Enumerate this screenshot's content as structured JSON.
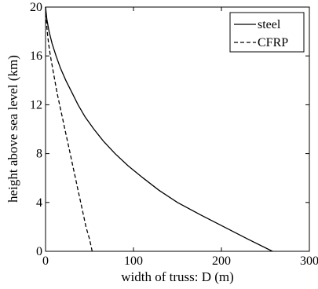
{
  "chart_data": {
    "type": "line",
    "title": "",
    "xlabel": "width of truss: D (m)",
    "ylabel": "height above sea level (km)",
    "xlim": [
      0,
      300
    ],
    "ylim": [
      0,
      20
    ],
    "xticks": [
      0,
      100,
      200,
      300
    ],
    "yticks": [
      0,
      4,
      8,
      12,
      16,
      20
    ],
    "grid": false,
    "legend": {
      "location": "top-right"
    },
    "series": [
      {
        "name": "steel",
        "style": "solid",
        "color": "#000000",
        "points": [
          [
            258,
            0
          ],
          [
            230,
            1
          ],
          [
            203,
            2
          ],
          [
            176,
            3
          ],
          [
            150,
            4
          ],
          [
            129,
            5
          ],
          [
            111,
            6
          ],
          [
            94,
            7
          ],
          [
            79,
            8
          ],
          [
            66,
            9
          ],
          [
            55,
            10
          ],
          [
            45,
            11
          ],
          [
            37,
            12
          ],
          [
            30,
            13
          ],
          [
            23,
            14
          ],
          [
            17,
            15
          ],
          [
            12,
            16
          ],
          [
            7.5,
            17
          ],
          [
            4,
            18
          ],
          [
            1.5,
            19
          ],
          [
            0,
            20
          ]
        ]
      },
      {
        "name": "CFRP",
        "style": "dashed",
        "color": "#000000",
        "points": [
          [
            53,
            0
          ],
          [
            50,
            1
          ],
          [
            46,
            2
          ],
          [
            43,
            3
          ],
          [
            40,
            4
          ],
          [
            37,
            5
          ],
          [
            34,
            6
          ],
          [
            31,
            7
          ],
          [
            28,
            8
          ],
          [
            25,
            9
          ],
          [
            22,
            10
          ],
          [
            19,
            11
          ],
          [
            16,
            12
          ],
          [
            13,
            13
          ],
          [
            10.5,
            14
          ],
          [
            8,
            15
          ],
          [
            5.5,
            16
          ],
          [
            3.5,
            17
          ],
          [
            2,
            18
          ],
          [
            0.8,
            19
          ],
          [
            0,
            20
          ]
        ]
      }
    ]
  }
}
